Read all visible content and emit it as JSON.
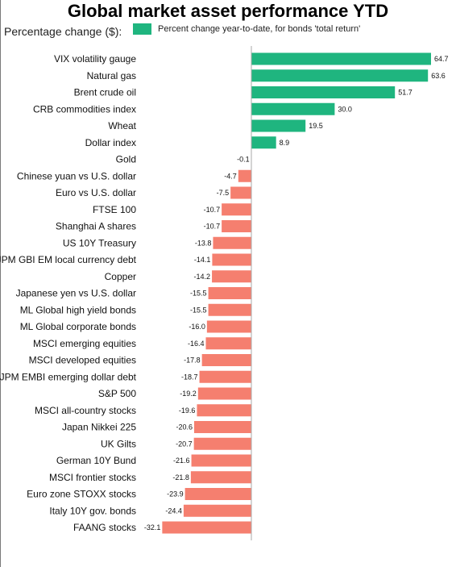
{
  "chart_data": {
    "type": "bar",
    "orientation": "horizontal",
    "title": "Global market asset performance YTD",
    "subtitle": "Percentage change ($):",
    "legend": {
      "label": "Percent change year-to-date, for bonds 'total return'",
      "placement": "top"
    },
    "grid": false,
    "colors": {
      "positive": "#1fb57f",
      "negative": "#f57f6f",
      "axis": "#aaaaaa"
    },
    "xlim": [
      -32.1,
      64.7
    ],
    "categories": [
      "VIX volatility gauge",
      "Natural gas",
      "Brent crude oil",
      "CRB commodities index",
      "Wheat",
      "Dollar index",
      "Gold",
      "Chinese yuan vs U.S. dollar",
      "Euro vs U.S. dollar",
      "FTSE 100",
      "Shanghai A shares",
      "US 10Y Treasury",
      "JPM GBI EM local currency debt",
      "Copper",
      "Japanese yen vs U.S. dollar",
      "ML Global high yield bonds",
      "ML Global corporate bonds",
      "MSCI emerging equities",
      "MSCI developed equities",
      "JPM EMBI emerging dollar debt",
      "S&P 500",
      "MSCI all-country stocks",
      "Japan Nikkei 225",
      "UK Gilts",
      "German 10Y Bund",
      "MSCI frontier stocks",
      "Euro zone STOXX stocks",
      "Italy 10Y gov. bonds",
      "FAANG stocks"
    ],
    "values": [
      64.7,
      63.6,
      51.7,
      30.0,
      19.5,
      8.9,
      -0.1,
      -4.7,
      -7.5,
      -10.7,
      -10.7,
      -13.8,
      -14.1,
      -14.2,
      -15.5,
      -15.5,
      -16.0,
      -16.4,
      -17.8,
      -18.7,
      -19.2,
      -19.6,
      -20.6,
      -20.7,
      -21.6,
      -21.8,
      -23.9,
      -24.4,
      -32.1
    ],
    "value_labels": [
      "64.7",
      "63.6",
      "51.7",
      "30.0",
      "19.5",
      "8.9",
      "-0.1",
      "-4.7",
      "-7.5",
      "-10.7",
      "-10.7",
      "-13.8",
      "-14.1",
      "-14.2",
      "-15.5",
      "-15.5",
      "-16.0",
      "-16.4",
      "-17.8",
      "-18.7",
      "-19.2",
      "-19.6",
      "-20.6",
      "-20.7",
      "-21.6",
      "-21.8",
      "-23.9",
      "-24.4",
      "-32.1"
    ]
  }
}
